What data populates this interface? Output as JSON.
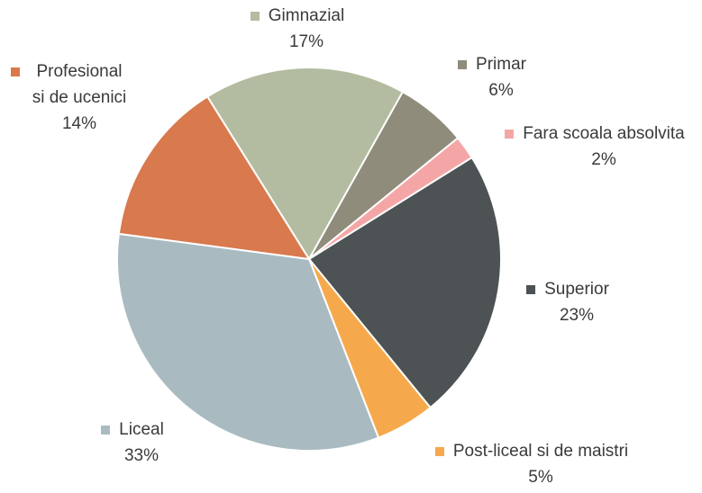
{
  "chart_data": {
    "type": "pie",
    "categories": [
      "Gimnazial",
      "Primar",
      "Fara scoala absolvita",
      "Superior",
      "Post-liceal si de maistri",
      "Liceal",
      "Profesional si de ucenici"
    ],
    "values": [
      17,
      6,
      2,
      23,
      5,
      33,
      14
    ],
    "value_labels": [
      "17%",
      "6%",
      "2%",
      "23%",
      "5%",
      "33%",
      "14%"
    ],
    "colors": [
      "#b3bca0",
      "#8f8c7c",
      "#f4a6a6",
      "#4d5254",
      "#f6a94c",
      "#a9bbc1",
      "#d9794e"
    ]
  }
}
